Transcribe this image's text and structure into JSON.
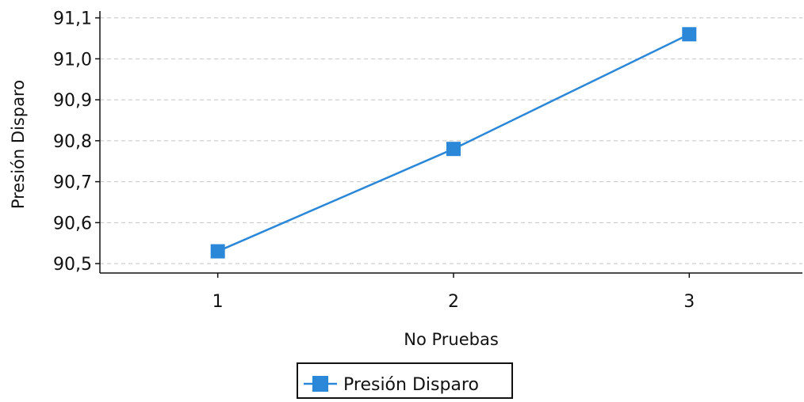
{
  "chart_data": {
    "type": "line",
    "title": "",
    "xlabel": "No Pruebas",
    "ylabel": "Presión Disparo",
    "x_ticks": [
      "1",
      "2",
      "3"
    ],
    "y_ticks": [
      "90,5",
      "90,6",
      "90,7",
      "90,8",
      "90,9",
      "91,0",
      "91,1"
    ],
    "xlim": [
      0.5,
      3.48
    ],
    "ylim": [
      90.477,
      91.105
    ],
    "grid": {
      "horizontal": true,
      "vertical": false,
      "style": "dashed"
    },
    "legend": {
      "placement": "bottom-center",
      "bordered": true
    },
    "series": [
      {
        "name": "Presión Disparo",
        "color": "#2b87d8",
        "marker": "square",
        "x": [
          1,
          2,
          3
        ],
        "values": [
          90.53,
          90.78,
          91.06
        ]
      }
    ]
  }
}
